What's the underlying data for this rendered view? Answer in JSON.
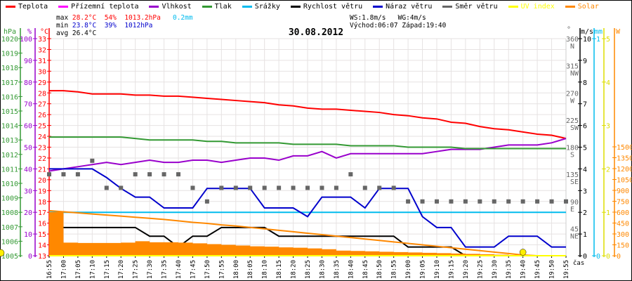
{
  "legend": [
    {
      "label": "Teplota",
      "color": "#ff0000"
    },
    {
      "label": "Přízemní teplota",
      "color": "#ff00ff"
    },
    {
      "label": "Vlhkost",
      "color": "#9900cc"
    },
    {
      "label": "Tlak",
      "color": "#339933"
    },
    {
      "label": "Srážky",
      "color": "#00bbee"
    },
    {
      "label": "Rychlost větru",
      "color": "#000000"
    },
    {
      "label": "Náraz větru",
      "color": "#0000cc"
    },
    {
      "label": "Směr větru",
      "color": "#666666"
    },
    {
      "label": "UV index",
      "color": "#ffff00"
    },
    {
      "label": "Solar",
      "color": "#ff8800"
    }
  ],
  "stats": {
    "max_label": "max",
    "max_temp": "28.2°C",
    "max_hum": "54%",
    "max_press": "1013.2hPa",
    "rain": "0.2mm",
    "min_label": "min",
    "min_temp": "23.8°C",
    "min_hum": "39%",
    "min_press": "1012hPa",
    "avg_label": "avg",
    "avg_temp": "26.4°C",
    "ws": "WS:1.8m/s",
    "wg": "WG:4m/s",
    "sunrise": "Východ:06:07",
    "sunset": "Západ:19:40"
  },
  "chart_data": {
    "type": "line",
    "title": "30.08.2012",
    "xlabel": "čas",
    "x": [
      "16:55",
      "17:00",
      "17:05",
      "17:10",
      "17:15",
      "17:20",
      "17:25",
      "17:30",
      "17:35",
      "17:40",
      "17:45",
      "17:50",
      "17:55",
      "18:00",
      "18:05",
      "18:10",
      "18:15",
      "18:20",
      "18:25",
      "18:30",
      "18:35",
      "18:40",
      "18:45",
      "18:50",
      "18:55",
      "19:00",
      "19:05",
      "19:10",
      "19:15",
      "19:20",
      "19:25",
      "19:30",
      "19:35",
      "19:40",
      "19:45",
      "19:50",
      "19:55"
    ],
    "axes": {
      "pressure": {
        "unit": "hPa",
        "range": [
          1005,
          1020
        ],
        "ticks": [
          1005,
          1006,
          1007,
          1008,
          1009,
          1010,
          1011,
          1012,
          1013,
          1014,
          1015,
          1016,
          1017,
          1018,
          1019,
          1020
        ]
      },
      "humidity": {
        "unit": "%",
        "range": [
          0,
          100
        ],
        "ticks": [
          0,
          10,
          20,
          30,
          40,
          50,
          60,
          70,
          80,
          90,
          100
        ]
      },
      "temperature": {
        "unit": "°C",
        "range": [
          13,
          33
        ],
        "ticks": [
          13,
          14,
          15,
          16,
          17,
          18,
          19,
          20,
          21,
          22,
          23,
          24,
          25,
          26,
          27,
          28,
          29,
          30,
          31,
          32,
          33
        ]
      },
      "direction": {
        "unit": "°",
        "range": [
          0,
          360
        ],
        "ticks": [
          {
            "v": 45,
            "c": "NE"
          },
          {
            "v": 90,
            "c": "E"
          },
          {
            "v": 135,
            "c": "SE"
          },
          {
            "v": 180,
            "c": "S"
          },
          {
            "v": 225,
            "c": "SW"
          },
          {
            "v": 270,
            "c": "W"
          },
          {
            "v": 315,
            "c": "NW"
          },
          {
            "v": 360,
            "c": "N"
          }
        ]
      },
      "wind": {
        "unit": "m/s",
        "range": [
          0,
          10
        ],
        "ticks": [
          0,
          1,
          2,
          3,
          4,
          5,
          6,
          7,
          8,
          9,
          10
        ]
      },
      "rain": {
        "unit": "mm",
        "range": [
          0,
          1
        ],
        "ticks": [
          0,
          1
        ]
      },
      "uv": {
        "unit": "",
        "range": [
          0,
          5
        ],
        "ticks": [
          0,
          1,
          2,
          3,
          4,
          5
        ]
      },
      "solar": {
        "unit": "W",
        "range": [
          0,
          3000
        ],
        "ticks": [
          0,
          150,
          300,
          450,
          600,
          750,
          900,
          1050,
          1200,
          1350,
          1500
        ]
      }
    },
    "series": [
      {
        "name": "Teplota",
        "axis": "temperature",
        "color": "#ff0000",
        "values": [
          28.2,
          28.2,
          28.1,
          27.9,
          27.9,
          27.9,
          27.8,
          27.8,
          27.7,
          27.7,
          27.6,
          27.5,
          27.4,
          27.3,
          27.2,
          27.1,
          26.9,
          26.8,
          26.6,
          26.5,
          26.5,
          26.4,
          26.3,
          26.2,
          26.0,
          25.9,
          25.7,
          25.6,
          25.3,
          25.2,
          24.9,
          24.7,
          24.6,
          24.4,
          24.2,
          24.1,
          23.8
        ]
      },
      {
        "name": "Vlhkost",
        "axis": "humidity",
        "color": "#9900cc",
        "values": [
          39,
          40,
          41,
          42,
          43,
          42,
          43,
          44,
          43,
          43,
          44,
          44,
          43,
          44,
          45,
          45,
          44,
          46,
          46,
          48,
          45,
          47,
          47,
          47,
          47,
          47,
          47,
          48,
          49,
          49,
          49,
          50,
          51,
          51,
          51,
          52,
          54
        ]
      },
      {
        "name": "Tlak",
        "axis": "pressure",
        "color": "#339933",
        "values": [
          1013.2,
          1013.2,
          1013.2,
          1013.2,
          1013.2,
          1013.2,
          1013.1,
          1013.0,
          1013.0,
          1013.0,
          1013.0,
          1012.9,
          1012.9,
          1012.8,
          1012.8,
          1012.8,
          1012.8,
          1012.7,
          1012.7,
          1012.7,
          1012.7,
          1012.6,
          1012.6,
          1012.6,
          1012.6,
          1012.5,
          1012.5,
          1012.5,
          1012.5,
          1012.4,
          1012.4,
          1012.4,
          1012.4,
          1012.4,
          1012.4,
          1012.4,
          1012.4
        ]
      },
      {
        "name": "Srážky",
        "axis": "rain",
        "color": "#00bbee",
        "values": [
          0.2,
          0.2,
          0.2,
          0.2,
          0.2,
          0.2,
          0.2,
          0.2,
          0.2,
          0.2,
          0.2,
          0.2,
          0.2,
          0.2,
          0.2,
          0.2,
          0.2,
          0.2,
          0.2,
          0.2,
          0.2,
          0.2,
          0.2,
          0.2,
          0.2,
          0.2,
          0.2,
          0.2,
          0.2,
          0.2,
          0.2,
          0.2,
          0.2,
          0.2,
          0.2,
          0.2,
          0.2
        ]
      },
      {
        "name": "Rychlost větru",
        "axis": "wind",
        "color": "#000000",
        "values": [
          1.7,
          1.3,
          1.3,
          1.3,
          1.3,
          1.3,
          1.3,
          0.9,
          0.9,
          0.4,
          0.9,
          0.9,
          1.3,
          1.3,
          1.3,
          1.3,
          0.9,
          0.9,
          0.9,
          0.9,
          0.9,
          0.9,
          0.9,
          0.9,
          0.9,
          0.4,
          0.4,
          0.4,
          0.4,
          0,
          0,
          0,
          0,
          0,
          0,
          0,
          0
        ]
      },
      {
        "name": "Náraz větru",
        "axis": "wind",
        "color": "#0000cc",
        "values": [
          4.0,
          4.0,
          4.0,
          4.0,
          3.6,
          3.1,
          2.7,
          2.7,
          2.2,
          2.2,
          2.2,
          3.1,
          3.1,
          3.1,
          3.1,
          2.2,
          2.2,
          2.2,
          1.8,
          2.7,
          2.7,
          2.7,
          2.2,
          3.1,
          3.1,
          3.1,
          1.8,
          1.3,
          1.3,
          0.4,
          0.4,
          0.4,
          0.9,
          0.9,
          0.9,
          0.4,
          0.4
        ]
      },
      {
        "name": "Směr větru",
        "axis": "direction",
        "color": "#666666",
        "kind": "points",
        "values": [
          135,
          135,
          135,
          157.5,
          112.5,
          112.5,
          135,
          135,
          135,
          135,
          112.5,
          90,
          112.5,
          112.5,
          112.5,
          112.5,
          112.5,
          112.5,
          112.5,
          112.5,
          112.5,
          135,
          112.5,
          112.5,
          112.5,
          90,
          90,
          90,
          90,
          90,
          90,
          90,
          90,
          90,
          90,
          90,
          90
        ]
      },
      {
        "name": "Solar",
        "axis": "solar",
        "color": "#ff8800",
        "kind": "area",
        "values": [
          600,
          180,
          175,
          175,
          175,
          180,
          200,
          185,
          185,
          180,
          170,
          160,
          150,
          140,
          130,
          125,
          115,
          110,
          100,
          90,
          70,
          65,
          60,
          55,
          50,
          45,
          40,
          35,
          30,
          25,
          20,
          15,
          10,
          0,
          0,
          0,
          0
        ]
      },
      {
        "name": "Solar max",
        "axis": "solar",
        "color": "#ff8800",
        "kind": "line",
        "values": [
          620,
          605,
          590,
          575,
          560,
          545,
          530,
          515,
          500,
          480,
          460,
          445,
          425,
          410,
          390,
          370,
          350,
          330,
          310,
          290,
          270,
          250,
          230,
          210,
          190,
          170,
          150,
          130,
          110,
          90,
          70,
          50,
          30,
          10,
          0,
          0,
          0
        ]
      },
      {
        "name": "UV index",
        "axis": "uv",
        "color": "#ffff00",
        "values": [
          0,
          0,
          0,
          0,
          0,
          0,
          0,
          0,
          0,
          0,
          0,
          0,
          0,
          0,
          0,
          0,
          0,
          0,
          0,
          0,
          0,
          0,
          0,
          0,
          0,
          0,
          0,
          0,
          0,
          0,
          0,
          0,
          0,
          0,
          0,
          0,
          0
        ]
      }
    ],
    "grid": true
  }
}
